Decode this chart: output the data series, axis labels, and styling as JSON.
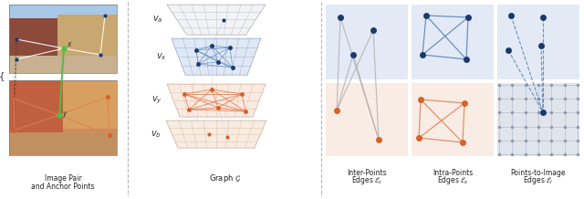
{
  "fig_width": 6.4,
  "fig_height": 2.18,
  "dpi": 100,
  "bg_color": "#ffffff",
  "blue_dark": "#1a3a6b",
  "blue_light": "#ccd9ee",
  "blue_mid": "#5580b8",
  "orange_dark": "#d4622a",
  "orange_light": "#f5ddd0",
  "orange_mid": "#e08050",
  "gray_light": "#d4dae6",
  "gray_grid": "#a8b0c0",
  "gray_dot": "#9099a8",
  "divider_color": "#999999",
  "text_color": "#222222",
  "green_color": "#55bb44",
  "white_line": "#dddddd",
  "inter_line": "#aaaaaa",
  "labels": {
    "section1_l1": "Image Pair",
    "section1_l2": "and Anchor Points",
    "section2": "Graph $\\mathcal{G}$",
    "section3a_l1": "Inter-Points",
    "section3a_l2": "Edges $\\mathcal{E}_c$",
    "section3b_l1": "Intra-Points",
    "section3b_l2": "Edges $\\mathcal{E}_s$",
    "section3c_l1": "Points-to-Image",
    "section3c_l2": "Edges $\\mathcal{E}_l$"
  },
  "layer_labels": [
    "$\\mathit{v}_a$",
    "$\\mathit{v}_x$",
    "$\\mathit{v}_y$",
    "$\\mathit{v}_b$"
  ]
}
